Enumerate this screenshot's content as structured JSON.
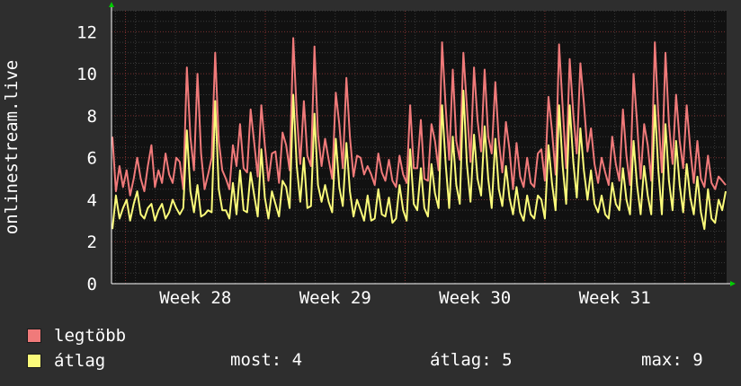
{
  "chart_data": {
    "type": "line",
    "ylabel": "onlinestream.live",
    "ylim": [
      0,
      13
    ],
    "yticks": [
      0,
      2,
      4,
      6,
      8,
      10,
      12
    ],
    "xticks": [
      "Week 28",
      "Week 29",
      "Week 30",
      "Week 31"
    ],
    "x_range_weeks": [
      27.4,
      31.8
    ],
    "grid": true,
    "series": [
      {
        "name": "legtöbb",
        "color": "#f07a7a",
        "values": [
          7.0,
          4.4,
          5.6,
          4.6,
          5.4,
          4.2,
          5.0,
          6.0,
          5.0,
          4.4,
          5.6,
          6.6,
          4.6,
          5.4,
          4.8,
          6.2,
          5.2,
          4.8,
          6.0,
          5.8,
          4.5,
          10.3,
          7.0,
          5.4,
          10.0,
          6.2,
          4.5,
          5.2,
          6.0,
          11.0,
          6.8,
          5.4,
          5.0,
          4.5,
          6.6,
          5.6,
          7.6,
          5.5,
          5.3,
          8.3,
          6.7,
          5.1,
          8.5,
          6.6,
          4.9,
          6.2,
          6.3,
          4.8,
          7.2,
          6.6,
          5.4,
          11.7,
          8.1,
          5.7,
          8.7,
          6.1,
          5.6,
          11.3,
          7.1,
          5.6,
          6.9,
          5.9,
          5.0,
          9.1,
          7.6,
          5.5,
          9.8,
          7.0,
          5.1,
          6.1,
          6.0,
          5.2,
          5.6,
          5.2,
          4.7,
          6.2,
          5.3,
          4.9,
          5.9,
          4.9,
          4.6,
          6.1,
          5.2,
          4.8,
          8.5,
          5.5,
          5.5,
          7.8,
          5.0,
          4.9,
          7.6,
          6.8,
          5.4,
          11.5,
          8.4,
          5.9,
          10.2,
          6.8,
          5.9,
          11.0,
          8.4,
          5.8,
          10.3,
          7.8,
          6.3,
          10.2,
          7.0,
          6.2,
          9.6,
          6.8,
          5.3,
          7.7,
          6.4,
          4.5,
          6.7,
          5.1,
          4.6,
          6.0,
          4.8,
          4.6,
          6.2,
          6.4,
          4.9,
          8.9,
          7.3,
          5.2,
          11.4,
          8.4,
          5.5,
          10.7,
          8.1,
          6.2,
          10.5,
          8.6,
          6.3,
          7.4,
          5.7,
          4.8,
          6.0,
          5.3,
          4.7,
          7.0,
          5.7,
          4.9,
          8.3,
          6.1,
          4.7,
          10.0,
          7.7,
          5.0,
          7.6,
          6.6,
          4.9,
          11.5,
          8.0,
          5.3,
          11.0,
          7.6,
          5.7,
          9.0,
          6.8,
          5.5,
          8.5,
          6.4,
          4.8,
          6.8,
          5.0,
          4.6,
          6.1,
          4.8,
          4.5,
          5.1,
          4.9,
          4.7
        ]
      },
      {
        "name": "átlag",
        "color": "#fafa7a",
        "values": [
          2.6,
          4.2,
          3.1,
          3.6,
          4.0,
          3.0,
          3.8,
          4.4,
          3.3,
          3.1,
          3.6,
          3.8,
          3.0,
          3.5,
          3.8,
          3.1,
          3.4,
          4.0,
          3.6,
          3.3,
          3.6,
          7.3,
          4.4,
          3.4,
          4.7,
          3.2,
          3.3,
          3.5,
          3.4,
          8.7,
          4.5,
          3.5,
          3.5,
          3.1,
          4.8,
          3.3,
          5.4,
          3.5,
          3.4,
          5.3,
          4.2,
          3.2,
          6.4,
          4.1,
          3.1,
          4.4,
          3.8,
          3.2,
          4.9,
          4.6,
          3.6,
          9.0,
          5.6,
          3.9,
          6.0,
          3.6,
          3.7,
          8.1,
          4.7,
          3.9,
          4.7,
          3.9,
          3.4,
          6.9,
          4.6,
          3.7,
          6.7,
          4.4,
          3.2,
          4.0,
          3.5,
          3.0,
          4.2,
          3.0,
          3.1,
          4.5,
          3.3,
          3.2,
          4.1,
          2.9,
          3.1,
          4.7,
          3.5,
          3.0,
          6.4,
          3.8,
          3.5,
          5.5,
          3.6,
          3.2,
          5.7,
          4.3,
          3.6,
          8.5,
          5.7,
          3.6,
          7.0,
          4.7,
          3.8,
          9.2,
          5.7,
          3.9,
          7.1,
          5.0,
          4.2,
          7.5,
          5.0,
          3.6,
          6.9,
          4.5,
          3.7,
          5.6,
          4.1,
          3.3,
          4.6,
          3.4,
          3.0,
          4.2,
          3.3,
          3.1,
          4.2,
          4.0,
          3.1,
          6.6,
          4.8,
          3.5,
          8.5,
          5.6,
          3.8,
          8.5,
          5.8,
          4.1,
          7.4,
          5.4,
          4.0,
          5.4,
          3.8,
          3.4,
          4.2,
          3.3,
          3.1,
          4.8,
          3.8,
          3.5,
          5.5,
          4.0,
          3.3,
          6.8,
          4.7,
          3.3,
          5.6,
          4.2,
          3.3,
          8.5,
          5.4,
          3.3,
          7.6,
          4.9,
          3.5,
          6.8,
          4.7,
          3.4,
          5.7,
          4.1,
          3.3,
          5.1,
          3.4,
          2.6,
          4.5,
          3.1,
          2.9,
          4.0,
          3.5,
          4.4
        ]
      }
    ]
  },
  "legend": [
    {
      "label": "legtöbb",
      "color": "#f07a7a"
    },
    {
      "label": "átlag",
      "color": "#fafa7a"
    }
  ],
  "stats": {
    "most": "most: 4",
    "atlag": "átlag: 5",
    "max": "max: 9"
  }
}
